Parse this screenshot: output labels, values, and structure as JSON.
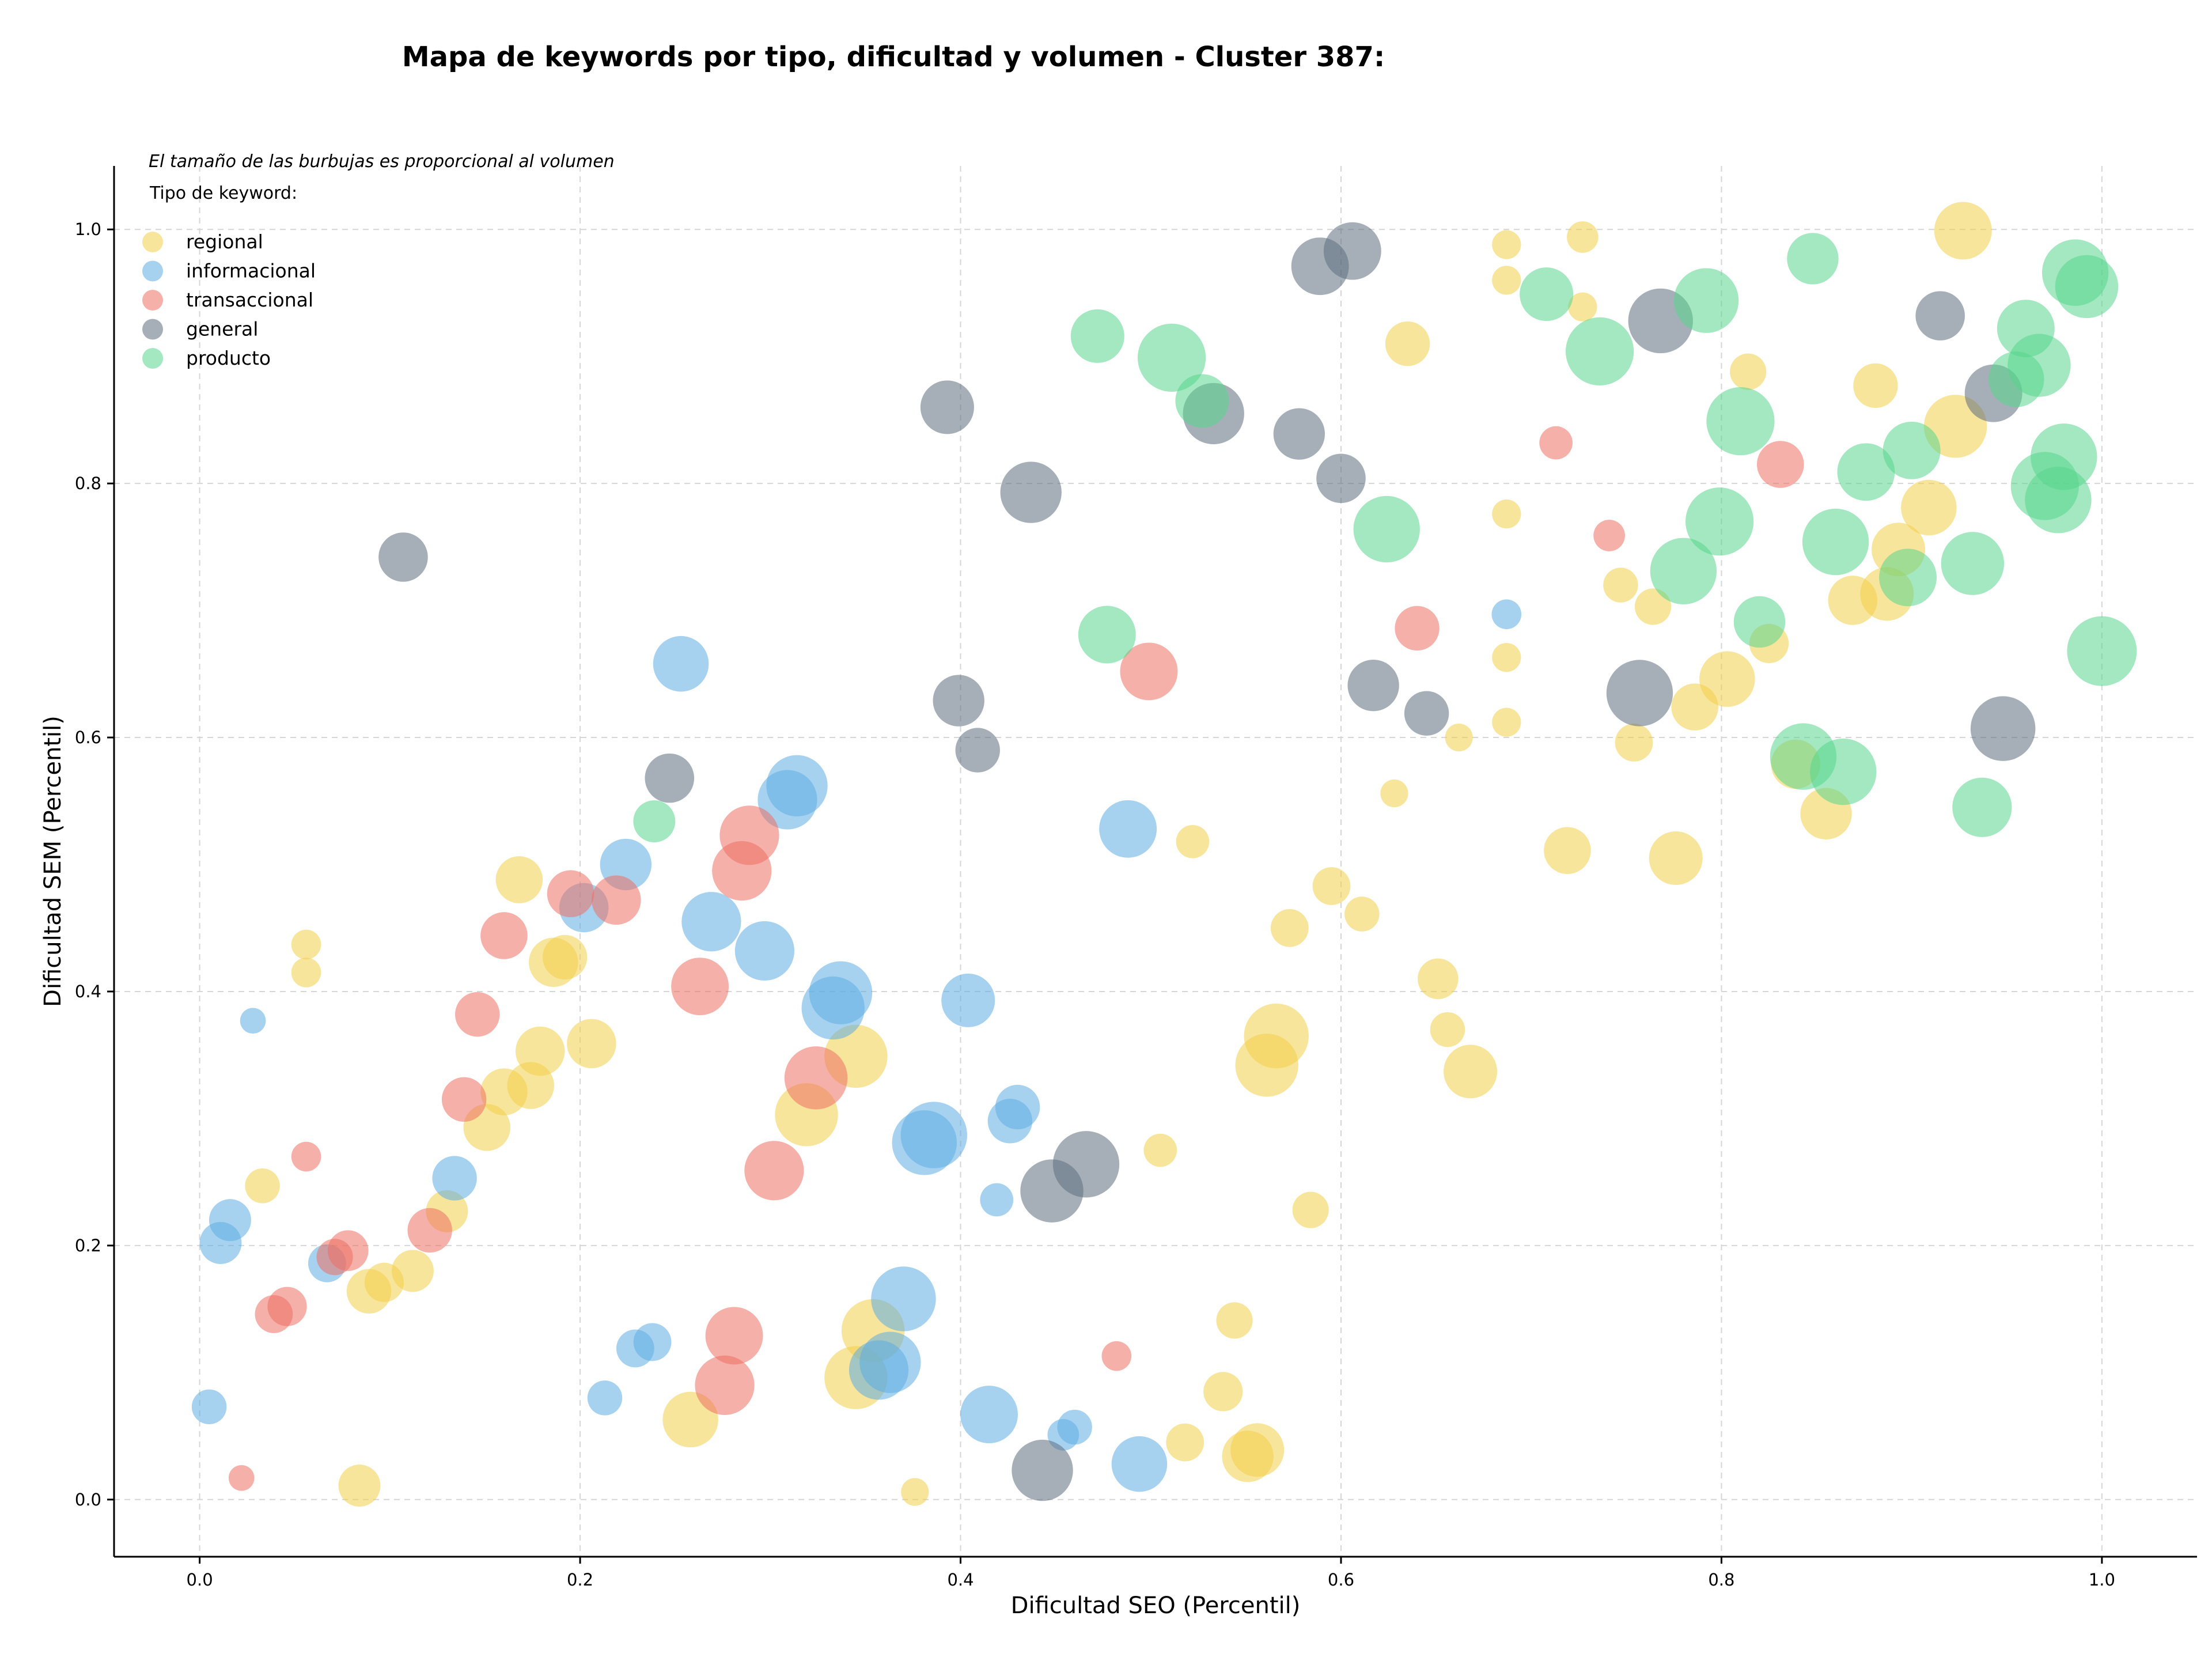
{
  "chart_data": {
    "type": "scatter",
    "title": "Mapa de keywords por tipo, dificultad y volumen - Cluster 387:",
    "xlabel": "Dificultad SEO (Percentil)",
    "ylabel": "Dificultad SEM (Percentil)",
    "note": "El tamaño de las burbujas es proporcional al volumen",
    "legend_title": "Tipo de keyword:",
    "legend_position": "top-left",
    "xlim": [
      -0.045,
      1.05
    ],
    "ylim": [
      -0.045,
      1.05
    ],
    "xticks": [
      0.0,
      0.2,
      0.4,
      0.6,
      0.8,
      1.0
    ],
    "yticks": [
      0.0,
      0.2,
      0.4,
      0.6,
      0.8,
      1.0
    ],
    "grid": true,
    "point_alpha": 0.55,
    "series": [
      {
        "name": "regional",
        "color": "#f2cf4a",
        "points": [
          {
            "x": 0.927,
            "y": 0.999,
            "size": 1500
          },
          {
            "x": 0.727,
            "y": 0.994,
            "size": 450
          },
          {
            "x": 0.687,
            "y": 0.988,
            "size": 380
          },
          {
            "x": 0.687,
            "y": 0.96,
            "size": 380
          },
          {
            "x": 0.727,
            "y": 0.939,
            "size": 380
          },
          {
            "x": 0.635,
            "y": 0.91,
            "size": 900
          },
          {
            "x": 0.814,
            "y": 0.888,
            "size": 600
          },
          {
            "x": 0.881,
            "y": 0.877,
            "size": 900
          },
          {
            "x": 0.923,
            "y": 0.845,
            "size": 1800
          },
          {
            "x": 0.909,
            "y": 0.781,
            "size": 1400
          },
          {
            "x": 0.687,
            "y": 0.776,
            "size": 380
          },
          {
            "x": 0.893,
            "y": 0.748,
            "size": 1300
          },
          {
            "x": 0.747,
            "y": 0.72,
            "size": 550
          },
          {
            "x": 0.887,
            "y": 0.713,
            "size": 1300
          },
          {
            "x": 0.869,
            "y": 0.708,
            "size": 1100
          },
          {
            "x": 0.764,
            "y": 0.703,
            "size": 600
          },
          {
            "x": 0.825,
            "y": 0.674,
            "size": 700
          },
          {
            "x": 0.687,
            "y": 0.663,
            "size": 380
          },
          {
            "x": 0.803,
            "y": 0.646,
            "size": 1400
          },
          {
            "x": 0.786,
            "y": 0.624,
            "size": 1000
          },
          {
            "x": 0.687,
            "y": 0.612,
            "size": 380
          },
          {
            "x": 0.662,
            "y": 0.6,
            "size": 350
          },
          {
            "x": 0.754,
            "y": 0.596,
            "size": 650
          },
          {
            "x": 0.839,
            "y": 0.579,
            "size": 1100
          },
          {
            "x": 0.628,
            "y": 0.556,
            "size": 350
          },
          {
            "x": 0.855,
            "y": 0.54,
            "size": 1200
          },
          {
            "x": 0.522,
            "y": 0.518,
            "size": 500
          },
          {
            "x": 0.719,
            "y": 0.511,
            "size": 1000
          },
          {
            "x": 0.776,
            "y": 0.505,
            "size": 1300
          },
          {
            "x": 0.595,
            "y": 0.483,
            "size": 650
          },
          {
            "x": 0.611,
            "y": 0.461,
            "size": 550
          },
          {
            "x": 0.573,
            "y": 0.45,
            "size": 650
          },
          {
            "x": 0.651,
            "y": 0.41,
            "size": 750
          },
          {
            "x": 0.656,
            "y": 0.37,
            "size": 550
          },
          {
            "x": 0.668,
            "y": 0.337,
            "size": 1300
          },
          {
            "x": 0.566,
            "y": 0.365,
            "size": 1900
          },
          {
            "x": 0.561,
            "y": 0.342,
            "size": 1800
          },
          {
            "x": 0.505,
            "y": 0.275,
            "size": 500
          },
          {
            "x": 0.584,
            "y": 0.228,
            "size": 600
          },
          {
            "x": 0.544,
            "y": 0.141,
            "size": 600
          },
          {
            "x": 0.538,
            "y": 0.085,
            "size": 700
          },
          {
            "x": 0.518,
            "y": 0.045,
            "size": 650
          },
          {
            "x": 0.556,
            "y": 0.039,
            "size": 1300
          },
          {
            "x": 0.551,
            "y": 0.034,
            "size": 1200
          },
          {
            "x": 0.376,
            "y": 0.006,
            "size": 350
          },
          {
            "x": 0.258,
            "y": 0.063,
            "size": 1400
          },
          {
            "x": 0.345,
            "y": 0.096,
            "size": 1800
          },
          {
            "x": 0.354,
            "y": 0.133,
            "size": 1800
          },
          {
            "x": 0.345,
            "y": 0.349,
            "size": 1800
          },
          {
            "x": 0.319,
            "y": 0.303,
            "size": 1800
          },
          {
            "x": 0.084,
            "y": 0.011,
            "size": 800
          },
          {
            "x": 0.089,
            "y": 0.164,
            "size": 900
          },
          {
            "x": 0.097,
            "y": 0.171,
            "size": 700
          },
          {
            "x": 0.112,
            "y": 0.18,
            "size": 800
          },
          {
            "x": 0.13,
            "y": 0.227,
            "size": 800
          },
          {
            "x": 0.151,
            "y": 0.293,
            "size": 1000
          },
          {
            "x": 0.16,
            "y": 0.321,
            "size": 1000
          },
          {
            "x": 0.174,
            "y": 0.326,
            "size": 1000
          },
          {
            "x": 0.179,
            "y": 0.353,
            "size": 1100
          },
          {
            "x": 0.206,
            "y": 0.359,
            "size": 1100
          },
          {
            "x": 0.186,
            "y": 0.423,
            "size": 1100
          },
          {
            "x": 0.192,
            "y": 0.427,
            "size": 900
          },
          {
            "x": 0.168,
            "y": 0.488,
            "size": 1000
          },
          {
            "x": 0.056,
            "y": 0.437,
            "size": 400
          },
          {
            "x": 0.056,
            "y": 0.415,
            "size": 400
          },
          {
            "x": 0.033,
            "y": 0.247,
            "size": 550
          }
        ]
      },
      {
        "name": "informacional",
        "color": "#5dade2",
        "points": [
          {
            "x": 0.687,
            "y": 0.697,
            "size": 400
          },
          {
            "x": 0.253,
            "y": 0.658,
            "size": 1400
          },
          {
            "x": 0.314,
            "y": 0.562,
            "size": 1700
          },
          {
            "x": 0.309,
            "y": 0.551,
            "size": 1600
          },
          {
            "x": 0.488,
            "y": 0.528,
            "size": 1500
          },
          {
            "x": 0.224,
            "y": 0.5,
            "size": 1200
          },
          {
            "x": 0.202,
            "y": 0.466,
            "size": 1100
          },
          {
            "x": 0.269,
            "y": 0.455,
            "size": 1600
          },
          {
            "x": 0.297,
            "y": 0.432,
            "size": 1600
          },
          {
            "x": 0.337,
            "y": 0.399,
            "size": 1800
          },
          {
            "x": 0.333,
            "y": 0.387,
            "size": 1800
          },
          {
            "x": 0.404,
            "y": 0.393,
            "size": 1300
          },
          {
            "x": 0.43,
            "y": 0.309,
            "size": 900
          },
          {
            "x": 0.426,
            "y": 0.298,
            "size": 900
          },
          {
            "x": 0.386,
            "y": 0.287,
            "size": 2000
          },
          {
            "x": 0.381,
            "y": 0.281,
            "size": 1900
          },
          {
            "x": 0.419,
            "y": 0.236,
            "size": 500
          },
          {
            "x": 0.37,
            "y": 0.158,
            "size": 1900
          },
          {
            "x": 0.363,
            "y": 0.108,
            "size": 1700
          },
          {
            "x": 0.357,
            "y": 0.102,
            "size": 1600
          },
          {
            "x": 0.415,
            "y": 0.067,
            "size": 1500
          },
          {
            "x": 0.46,
            "y": 0.057,
            "size": 550
          },
          {
            "x": 0.454,
            "y": 0.051,
            "size": 450
          },
          {
            "x": 0.494,
            "y": 0.028,
            "size": 1400
          },
          {
            "x": 0.238,
            "y": 0.124,
            "size": 650
          },
          {
            "x": 0.229,
            "y": 0.119,
            "size": 650
          },
          {
            "x": 0.213,
            "y": 0.08,
            "size": 550
          },
          {
            "x": 0.134,
            "y": 0.253,
            "size": 900
          },
          {
            "x": 0.067,
            "y": 0.186,
            "size": 650
          },
          {
            "x": 0.016,
            "y": 0.22,
            "size": 800
          },
          {
            "x": 0.011,
            "y": 0.202,
            "size": 800
          },
          {
            "x": 0.028,
            "y": 0.377,
            "size": 300
          },
          {
            "x": 0.005,
            "y": 0.073,
            "size": 550
          }
        ]
      },
      {
        "name": "transaccional",
        "color": "#ec7063",
        "points": [
          {
            "x": 0.713,
            "y": 0.832,
            "size": 500
          },
          {
            "x": 0.831,
            "y": 0.815,
            "size": 1000
          },
          {
            "x": 0.741,
            "y": 0.759,
            "size": 450
          },
          {
            "x": 0.64,
            "y": 0.686,
            "size": 900
          },
          {
            "x": 0.499,
            "y": 0.652,
            "size": 1500
          },
          {
            "x": 0.289,
            "y": 0.523,
            "size": 1600
          },
          {
            "x": 0.285,
            "y": 0.495,
            "size": 1600
          },
          {
            "x": 0.195,
            "y": 0.477,
            "size": 1000
          },
          {
            "x": 0.219,
            "y": 0.472,
            "size": 1100
          },
          {
            "x": 0.16,
            "y": 0.444,
            "size": 1000
          },
          {
            "x": 0.263,
            "y": 0.404,
            "size": 1500
          },
          {
            "x": 0.146,
            "y": 0.382,
            "size": 900
          },
          {
            "x": 0.324,
            "y": 0.332,
            "size": 1800
          },
          {
            "x": 0.139,
            "y": 0.315,
            "size": 900
          },
          {
            "x": 0.302,
            "y": 0.259,
            "size": 1600
          },
          {
            "x": 0.121,
            "y": 0.212,
            "size": 900
          },
          {
            "x": 0.078,
            "y": 0.196,
            "size": 750
          },
          {
            "x": 0.071,
            "y": 0.191,
            "size": 600
          },
          {
            "x": 0.056,
            "y": 0.27,
            "size": 400
          },
          {
            "x": 0.046,
            "y": 0.152,
            "size": 700
          },
          {
            "x": 0.039,
            "y": 0.146,
            "size": 650
          },
          {
            "x": 0.281,
            "y": 0.129,
            "size": 1500
          },
          {
            "x": 0.276,
            "y": 0.09,
            "size": 1600
          },
          {
            "x": 0.482,
            "y": 0.113,
            "size": 400
          },
          {
            "x": 0.022,
            "y": 0.017,
            "size": 300
          }
        ]
      },
      {
        "name": "general",
        "color": "#5d6d7e",
        "points": [
          {
            "x": 0.606,
            "y": 0.983,
            "size": 1500
          },
          {
            "x": 0.589,
            "y": 0.971,
            "size": 1500
          },
          {
            "x": 0.768,
            "y": 0.928,
            "size": 1900
          },
          {
            "x": 0.915,
            "y": 0.932,
            "size": 1100
          },
          {
            "x": 0.943,
            "y": 0.871,
            "size": 1500
          },
          {
            "x": 0.393,
            "y": 0.86,
            "size": 1300
          },
          {
            "x": 0.533,
            "y": 0.855,
            "size": 1700
          },
          {
            "x": 0.578,
            "y": 0.839,
            "size": 1200
          },
          {
            "x": 0.6,
            "y": 0.804,
            "size": 1100
          },
          {
            "x": 0.437,
            "y": 0.793,
            "size": 1700
          },
          {
            "x": 0.107,
            "y": 0.742,
            "size": 1100
          },
          {
            "x": 0.399,
            "y": 0.629,
            "size": 1200
          },
          {
            "x": 0.409,
            "y": 0.59,
            "size": 900
          },
          {
            "x": 0.617,
            "y": 0.641,
            "size": 1200
          },
          {
            "x": 0.645,
            "y": 0.619,
            "size": 900
          },
          {
            "x": 0.757,
            "y": 0.635,
            "size": 2000
          },
          {
            "x": 0.948,
            "y": 0.607,
            "size": 1900
          },
          {
            "x": 0.247,
            "y": 0.568,
            "size": 1100
          },
          {
            "x": 0.466,
            "y": 0.264,
            "size": 2000
          },
          {
            "x": 0.448,
            "y": 0.243,
            "size": 1800
          },
          {
            "x": 0.443,
            "y": 0.023,
            "size": 1700
          }
        ]
      },
      {
        "name": "producto",
        "color": "#58d68d",
        "points": [
          {
            "x": 0.986,
            "y": 0.966,
            "size": 2000
          },
          {
            "x": 0.992,
            "y": 0.955,
            "size": 1800
          },
          {
            "x": 0.848,
            "y": 0.977,
            "size": 1200
          },
          {
            "x": 0.708,
            "y": 0.949,
            "size": 1300
          },
          {
            "x": 0.792,
            "y": 0.944,
            "size": 1900
          },
          {
            "x": 0.96,
            "y": 0.922,
            "size": 1500
          },
          {
            "x": 0.472,
            "y": 0.916,
            "size": 1300
          },
          {
            "x": 0.736,
            "y": 0.904,
            "size": 2100
          },
          {
            "x": 0.511,
            "y": 0.899,
            "size": 2100
          },
          {
            "x": 0.967,
            "y": 0.893,
            "size": 1800
          },
          {
            "x": 0.955,
            "y": 0.882,
            "size": 1400
          },
          {
            "x": 0.527,
            "y": 0.865,
            "size": 1300
          },
          {
            "x": 0.81,
            "y": 0.849,
            "size": 2100
          },
          {
            "x": 0.9,
            "y": 0.826,
            "size": 1500
          },
          {
            "x": 0.98,
            "y": 0.821,
            "size": 2000
          },
          {
            "x": 0.876,
            "y": 0.809,
            "size": 1500
          },
          {
            "x": 0.97,
            "y": 0.798,
            "size": 2100
          },
          {
            "x": 0.977,
            "y": 0.787,
            "size": 2000
          },
          {
            "x": 0.799,
            "y": 0.77,
            "size": 2100
          },
          {
            "x": 0.624,
            "y": 0.764,
            "size": 2000
          },
          {
            "x": 0.86,
            "y": 0.754,
            "size": 2000
          },
          {
            "x": 0.932,
            "y": 0.737,
            "size": 1800
          },
          {
            "x": 0.78,
            "y": 0.731,
            "size": 2000
          },
          {
            "x": 0.898,
            "y": 0.726,
            "size": 1500
          },
          {
            "x": 0.82,
            "y": 0.691,
            "size": 1200
          },
          {
            "x": 0.477,
            "y": 0.681,
            "size": 1500
          },
          {
            "x": 1.0,
            "y": 0.668,
            "size": 2200
          },
          {
            "x": 0.843,
            "y": 0.585,
            "size": 2000
          },
          {
            "x": 0.864,
            "y": 0.573,
            "size": 2000
          },
          {
            "x": 0.937,
            "y": 0.545,
            "size": 1600
          },
          {
            "x": 0.239,
            "y": 0.534,
            "size": 800
          }
        ]
      }
    ]
  }
}
